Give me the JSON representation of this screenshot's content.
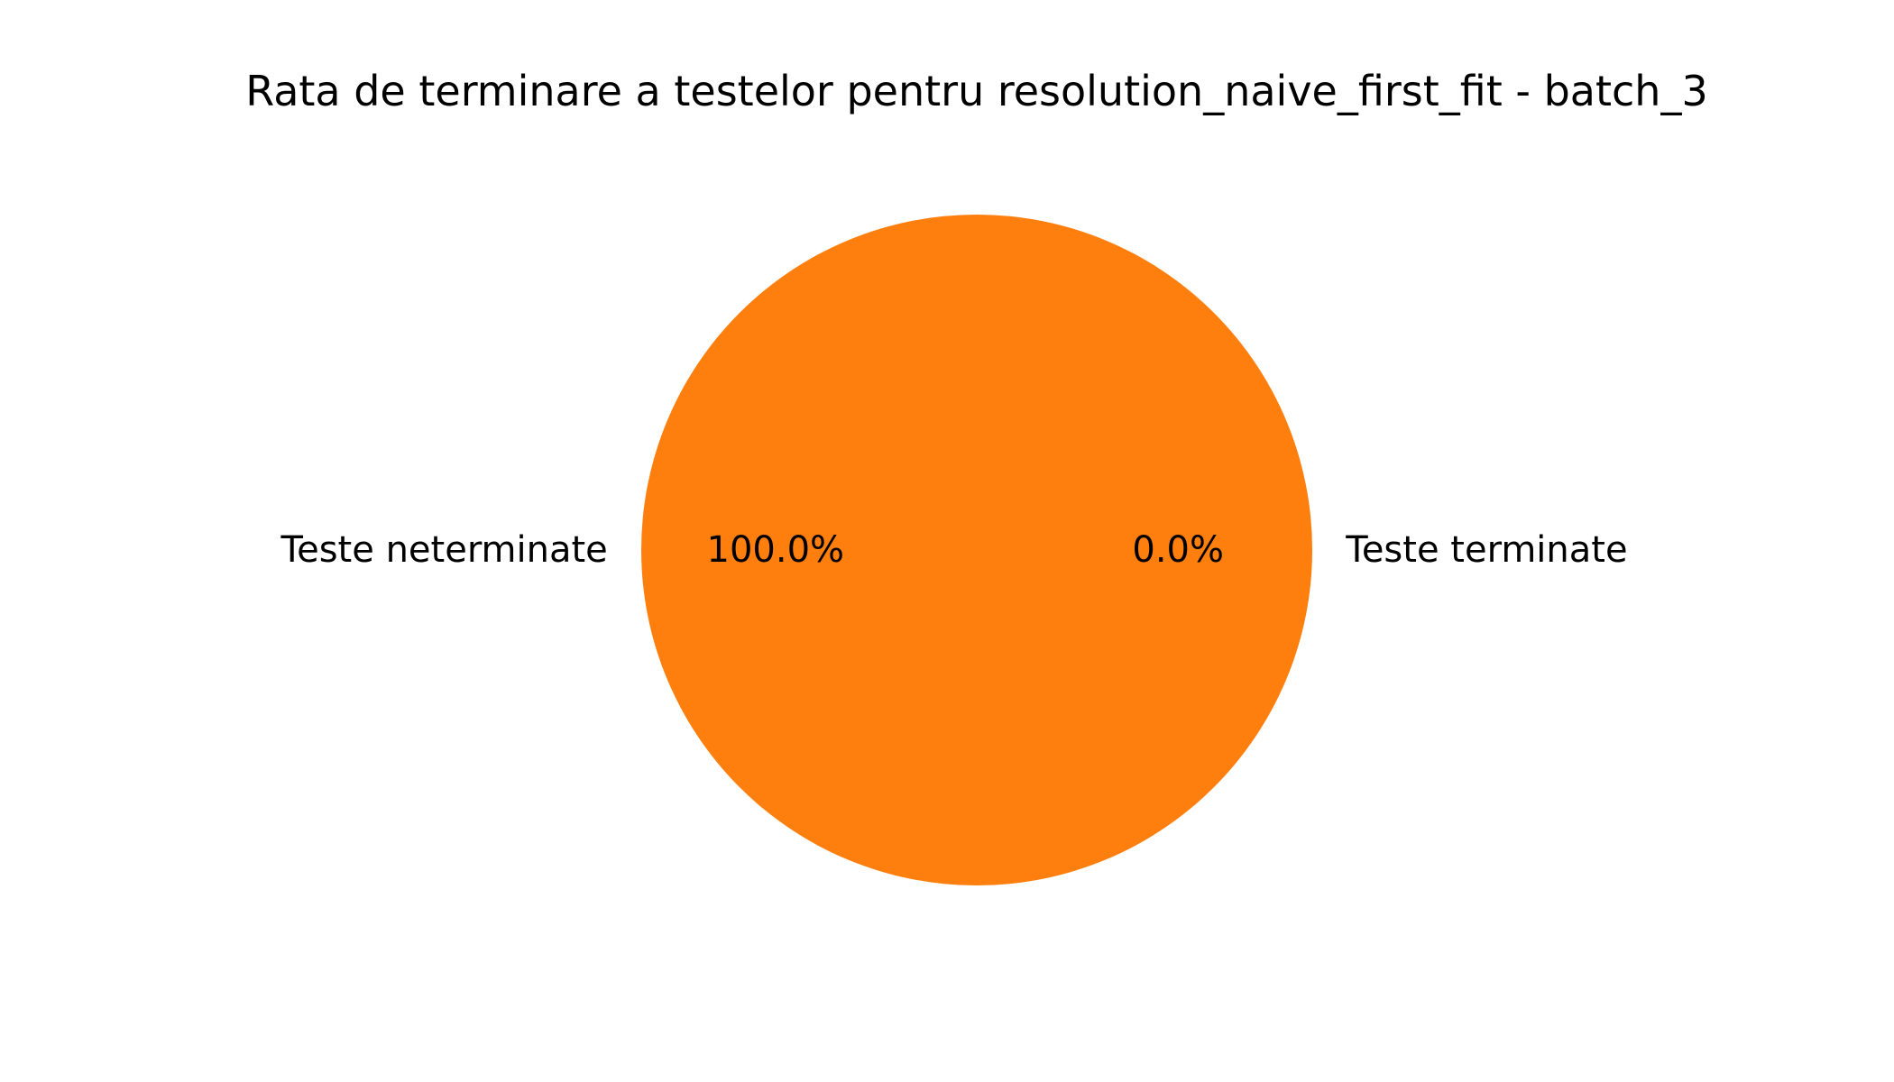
{
  "chart_data": {
    "type": "pie",
    "title": "Rata de terminare a testelor pentru resolution_naive_first_fit - batch_3",
    "slices": [
      {
        "label": "Teste terminate",
        "value": 0,
        "percent_label": "0.0%",
        "color": "#1f77b4"
      },
      {
        "label": "Teste neterminate",
        "value": 100,
        "percent_label": "100.0%",
        "color": "#ff7f0e"
      }
    ],
    "start_angle_deg": 0,
    "counterclockwise": true
  }
}
